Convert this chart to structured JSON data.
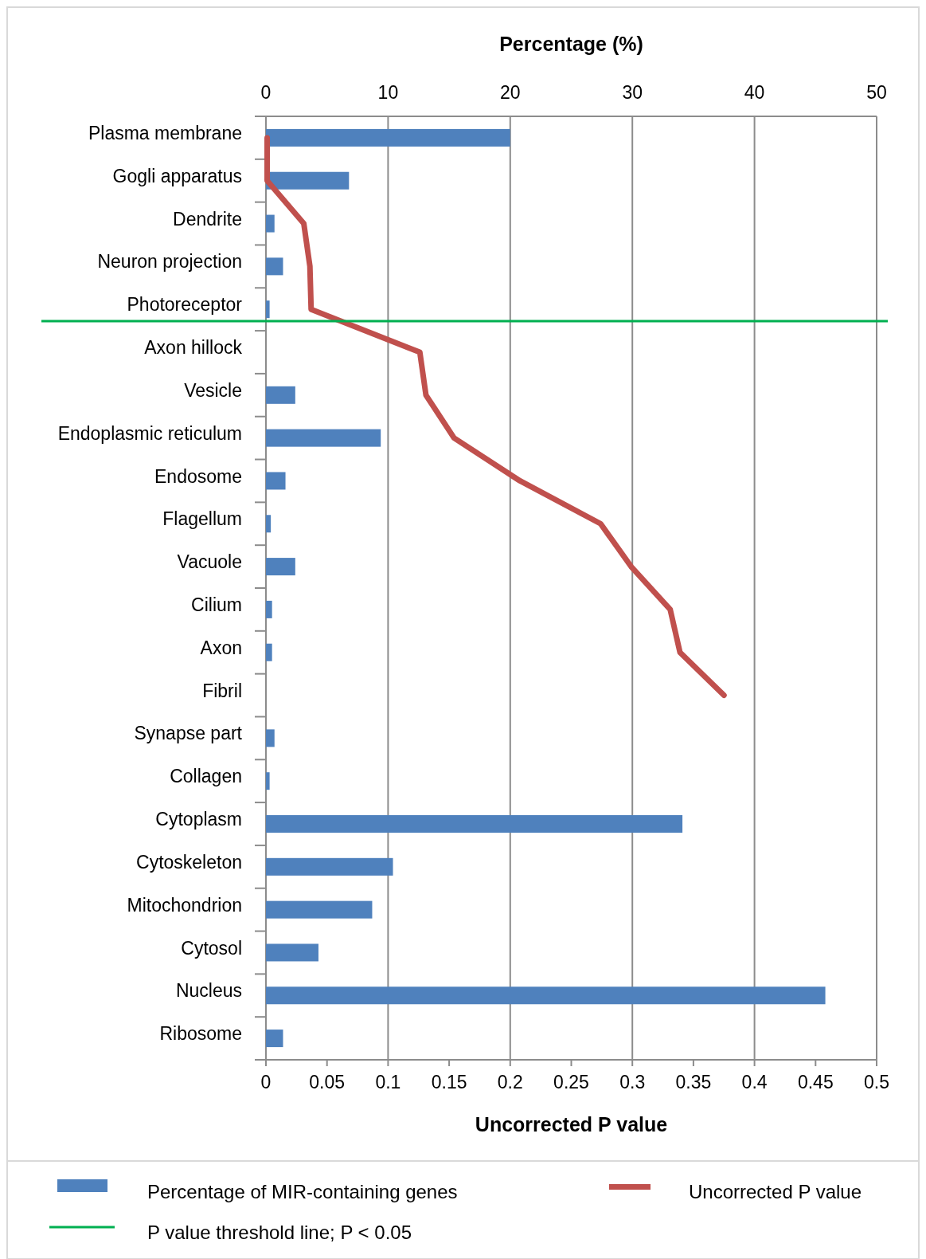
{
  "chart_data": {
    "type": "bar",
    "orientation": "horizontal",
    "categories": [
      "Plasma membrane",
      "Gogli apparatus",
      "Dendrite",
      "Neuron projection",
      "Photoreceptor",
      "Axon hillock",
      "Vesicle",
      "Endoplasmic reticulum",
      "Endosome",
      "Flagellum",
      "Vacuole",
      "Cilium",
      "Axon",
      "Fibril",
      "Synapse part",
      "Collagen",
      "Cytoplasm",
      "Cytoskeleton",
      "Mitochondrion",
      "Cytosol",
      "Nucleus",
      "Ribosome"
    ],
    "series": [
      {
        "name": "Percentage of MIR-containing genes",
        "color": "#4f81bd",
        "axis": "x2",
        "values": [
          20.0,
          6.8,
          0.7,
          1.4,
          0.3,
          0,
          2.4,
          9.4,
          1.6,
          0.4,
          2.4,
          0.5,
          0.5,
          0,
          0.7,
          0.3,
          34.1,
          10.4,
          8.7,
          4.3,
          45.8,
          1.4
        ]
      },
      {
        "name": "Uncorrected P value",
        "type": "line",
        "color": "#c0504d",
        "values": [
          0.001,
          0.001,
          0.031,
          0.036,
          0.037,
          0.126,
          0.131,
          0.154,
          0.208,
          0.274,
          0.299,
          0.331,
          0.339,
          0.375,
          null,
          null,
          null,
          null,
          null,
          null,
          null,
          null
        ]
      }
    ],
    "xlim": [
      0,
      0.5
    ],
    "xticks": [
      0,
      0.05,
      0.1,
      0.15,
      0.2,
      0.25,
      0.3,
      0.35,
      0.4,
      0.45,
      0.5
    ],
    "x2lim": [
      0,
      50
    ],
    "x2ticks": [
      0,
      10,
      20,
      30,
      40,
      50
    ],
    "xlabel": "Uncorrected P value",
    "x2label": "Percentage (%)",
    "grid": "x2",
    "legend": "bottom",
    "ref_lines": [
      {
        "axis": "y",
        "value": "Photoreceptor",
        "label": "P value threshold line; P < 0.05",
        "color": "#00b050"
      }
    ]
  }
}
